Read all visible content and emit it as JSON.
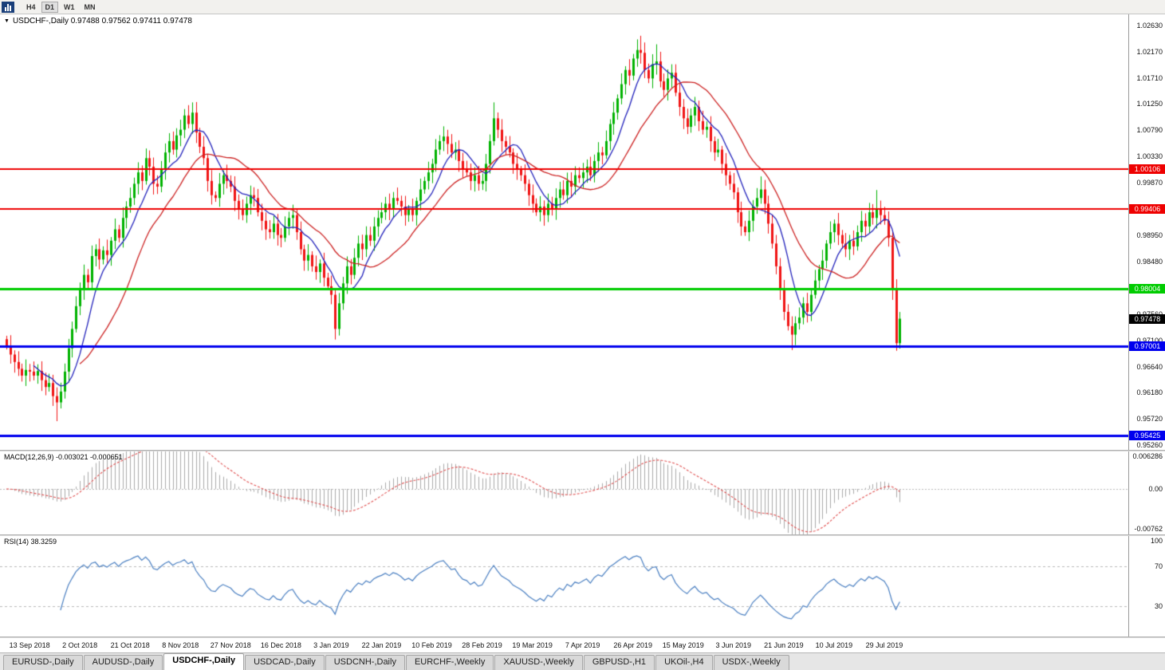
{
  "toolbar": {
    "timeframes": [
      "H4",
      "D1",
      "W1",
      "MN"
    ],
    "active_timeframe": "D1"
  },
  "header": {
    "symbol_line": "USDCHF-,Daily 0.97488 0.97562 0.97411 0.97478"
  },
  "tabs": [
    {
      "label": "EURUSD-,Daily",
      "active": false
    },
    {
      "label": "AUDUSD-,Daily",
      "active": false
    },
    {
      "label": "USDCHF-,Daily",
      "active": true
    },
    {
      "label": "USDCAD-,Daily",
      "active": false
    },
    {
      "label": "USDCNH-,Daily",
      "active": false
    },
    {
      "label": "EURCHF-,Weekly",
      "active": false
    },
    {
      "label": "XAUUSD-,Weekly",
      "active": false
    },
    {
      "label": "GBPUSD-,H1",
      "active": false
    },
    {
      "label": "UKOil-,H4",
      "active": false
    },
    {
      "label": "USDX-,Weekly",
      "active": false
    }
  ],
  "chart_data": {
    "type": "candlestick",
    "symbol": "USDCHF-",
    "timeframe": "Daily",
    "ohlc_display": {
      "open": "0.97488",
      "high": "0.97562",
      "low": "0.97411",
      "close": "0.97478"
    },
    "price_axis": {
      "top": 1.0263,
      "bottom": 0.9526,
      "ticks": [
        "1.02630",
        "1.02170",
        "1.01710",
        "1.01250",
        "1.00790",
        "1.00330",
        "0.99870",
        "0.98950",
        "0.98480",
        "0.97560",
        "0.97100",
        "0.96640",
        "0.96180",
        "0.95720",
        "0.95260"
      ]
    },
    "levels": [
      {
        "label": "1.00106",
        "value": 1.00106,
        "color": "#ee0000",
        "width": 2
      },
      {
        "label": "0.99406",
        "value": 0.99406,
        "color": "#ee0000",
        "width": 2
      },
      {
        "label": "0.98004",
        "value": 0.98004,
        "color": "#00cc00",
        "width": 3
      },
      {
        "label": "0.97001",
        "value": 0.97001,
        "color": "#0000ee",
        "width": 3
      },
      {
        "label": "0.95425",
        "value": 0.95425,
        "color": "#0000ee",
        "width": 3
      }
    ],
    "current_price": {
      "label": "0.97478",
      "value": 0.97478,
      "color": "#000000"
    },
    "x_labels": [
      "13 Sep 2018",
      "2 Oct 2018",
      "21 Oct 2018",
      "8 Nov 2018",
      "27 Nov 2018",
      "16 Dec 2018",
      "3 Jan 2019",
      "22 Jan 2019",
      "10 Feb 2019",
      "28 Feb 2019",
      "19 Mar 2019",
      "7 Apr 2019",
      "26 Apr 2019",
      "15 May 2019",
      "3 Jun 2019",
      "21 Jun 2019",
      "10 Jul 2019",
      "29 Jul 2019"
    ],
    "first_open": 0.9712,
    "closes": [
      0.97,
      0.9685,
      0.9672,
      0.966,
      0.9648,
      0.9658,
      0.9655,
      0.9648,
      0.9656,
      0.964,
      0.9628,
      0.9635,
      0.9612,
      0.9601,
      0.962,
      0.9655,
      0.9696,
      0.973,
      0.977,
      0.98,
      0.9825,
      0.9812,
      0.9858,
      0.987,
      0.9852,
      0.9868,
      0.986,
      0.9885,
      0.9905,
      0.989,
      0.9925,
      0.9945,
      0.996,
      0.9985,
      1.0005,
      0.999,
      1.003,
      1.0015,
      0.9985,
      0.998,
      1.001,
      1.004,
      1.006,
      1.0045,
      1.007,
      1.008,
      1.0105,
      1.009,
      1.011,
      1.0075,
      1.005,
      1.003,
      0.999,
      0.9965,
      0.996,
      0.9985,
      1.0,
      0.999,
      0.998,
      0.9955,
      0.994,
      0.993,
      0.995,
      0.9965,
      0.996,
      0.9935,
      0.992,
      0.9905,
      0.99,
      0.9915,
      0.9895,
      0.989,
      0.991,
      0.9925,
      0.993,
      0.99,
      0.987,
      0.985,
      0.986,
      0.984,
      0.983,
      0.9845,
      0.982,
      0.9805,
      0.979,
      0.973,
      0.9775,
      0.981,
      0.984,
      0.9825,
      0.9855,
      0.988,
      0.987,
      0.9895,
      0.9885,
      0.991,
      0.9925,
      0.9935,
      0.995,
      0.994,
      0.996,
      0.9955,
      0.9945,
      0.993,
      0.994,
      0.993,
      0.9955,
      0.9975,
      0.999,
      1.0005,
      1.002,
      1.0045,
      1.006,
      1.0068,
      1.0055,
      1.004,
      1.0045,
      1.0025,
      1.001,
      1.0005,
      0.999,
      1.0,
      0.9985,
      0.999,
      1.002,
      1.006,
      1.01,
      1.008,
      1.006,
      1.005,
      1.004,
      1.002,
      1.001,
      1.0,
      0.9985,
      0.9965,
      0.995,
      0.9935,
      0.9945,
      0.993,
      0.995,
      0.994,
      0.996,
      0.9975,
      0.9965,
      0.999,
      0.998,
      1.0,
      0.9995,
      1.0005,
      1.0015,
      1.0,
      1.0025,
      1.004,
      1.0035,
      1.006,
      1.009,
      1.011,
      1.0135,
      1.016,
      1.0185,
      1.0175,
      1.0205,
      1.022,
      1.0215,
      1.0185,
      1.017,
      1.0195,
      1.02,
      1.0165,
      1.015,
      1.017,
      1.018,
      1.0145,
      1.012,
      1.01,
      1.0085,
      1.0105,
      1.012,
      1.0095,
      1.008,
      1.0085,
      1.006,
      1.004,
      1.0045,
      1.002,
      1.0,
      0.9985,
      0.997,
      0.9935,
      0.991,
      0.99,
      0.992,
      0.9945,
      0.996,
      0.9975,
      0.995,
      0.9915,
      0.988,
      0.984,
      0.98,
      0.976,
      0.9735,
      0.972,
      0.974,
      0.975,
      0.9775,
      0.976,
      0.979,
      0.9815,
      0.9835,
      0.985,
      0.988,
      0.99,
      0.9915,
      0.9895,
      0.988,
      0.987,
      0.9885,
      0.9875,
      0.99,
      0.992,
      0.991,
      0.9935,
      0.9925,
      0.994,
      0.993,
      0.992,
      0.989,
      0.98,
      0.9705,
      0.9748
    ],
    "wick_overrides": {
      "highs": {
        "48": 1.0128,
        "126": 1.0128,
        "164": 1.0245,
        "168": 1.023,
        "195": 0.9998,
        "225": 0.9974
      },
      "lows": {
        "13": 0.9568,
        "85": 0.9712,
        "203": 0.9693,
        "230": 0.9694
      }
    },
    "colors": {
      "up": "#00b200",
      "down": "#f01414",
      "ma_fast": "#2222bb",
      "ma_slow": "#cc2222",
      "macd_hist": "#aaaaaa",
      "macd_signal": "#e05050",
      "rsi": "#4a7fc1"
    },
    "macd": {
      "label": "MACD(12,26,9) -0.003021 -0.000651",
      "params": [
        12,
        26,
        9
      ],
      "values_display": [
        "-0.003021",
        "-0.000651"
      ],
      "ticks": [
        {
          "label": "0.006286",
          "value": 0.006286
        },
        {
          "label": "0.00",
          "value": 0
        },
        {
          "label": "-0.00762",
          "value": -0.00762
        }
      ]
    },
    "rsi": {
      "label": "RSI(14) 38.3259",
      "period": 14,
      "value": 38.3259,
      "ticks": [
        {
          "label": "100",
          "value": 100
        },
        {
          "label": "70",
          "value": 70
        },
        {
          "label": "30",
          "value": 30
        }
      ],
      "guides": [
        70,
        30
      ]
    }
  }
}
